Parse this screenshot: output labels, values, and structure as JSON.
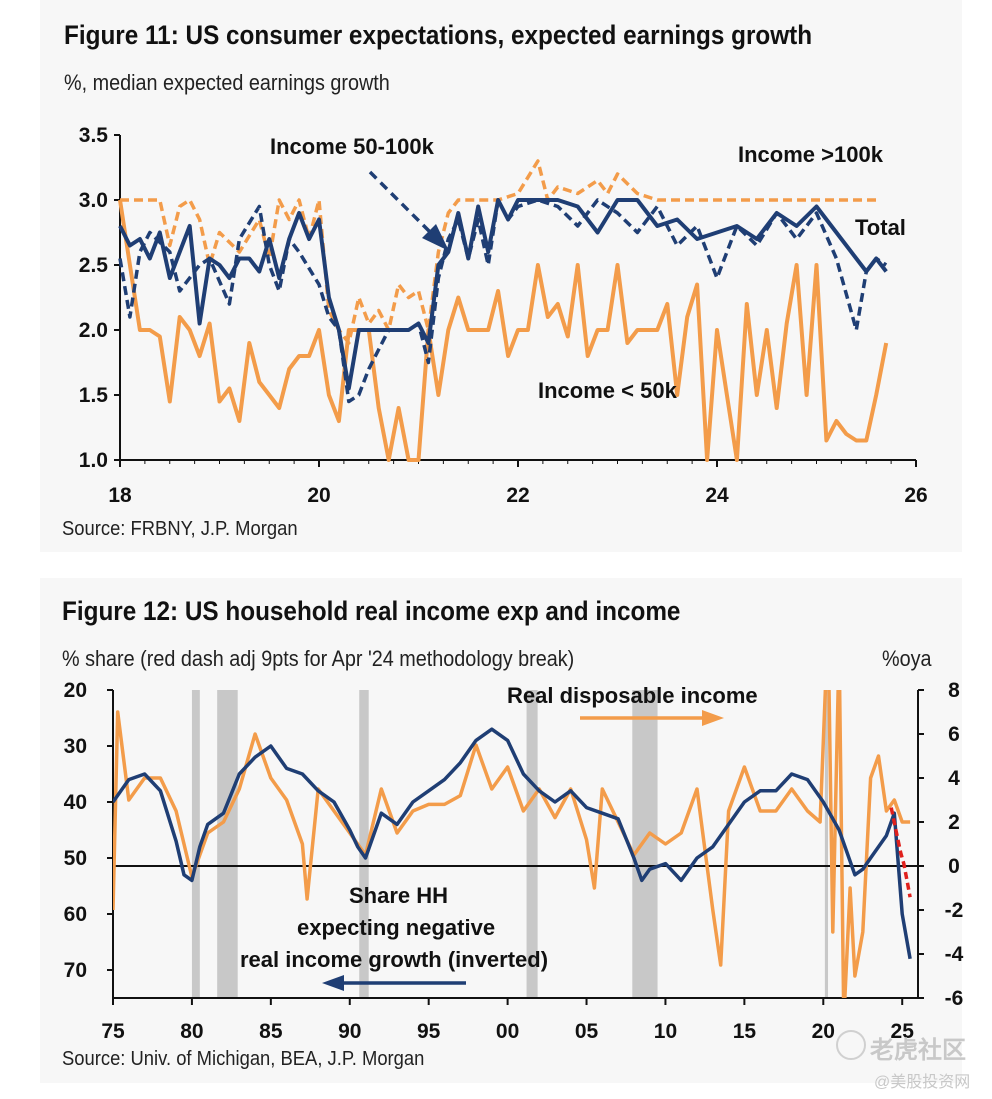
{
  "fig11": {
    "title": "Figure 11: US consumer expectations, expected earnings growth",
    "subtitle": "%, median expected earnings growth",
    "source": "Source: FRBNY, J.P. Morgan",
    "annotations": {
      "mid": "Income 50-100k",
      "high": "Income >100k",
      "total": "Total",
      "low": "Income < 50k"
    }
  },
  "fig12": {
    "title": "Figure 12: US household real income exp and income",
    "subtitle_left": "% share (red dash adj 9pts for Apr '24 methodology break)",
    "subtitle_right": "%oya",
    "source": "Source: Univ. of Michigan, BEA, J.P. Morgan",
    "annotations": {
      "rdi": "Real disposable income",
      "share1": "Share HH",
      "share2": "expecting negative",
      "share3": "real income growth (inverted)"
    }
  },
  "watermark": {
    "line1": "老虎社区",
    "line2": "@美股投资网"
  },
  "chart_data": [
    {
      "type": "line",
      "title": "Figure 11: US consumer expectations, expected earnings growth",
      "ylabel": "%, median expected earnings growth",
      "xlabel": "",
      "xlim": [
        2018,
        2026
      ],
      "ylim": [
        1.0,
        3.5
      ],
      "x_ticks": [
        18,
        20,
        22,
        24,
        26
      ],
      "y_ticks": [
        "3.5",
        "3.0",
        "2.5",
        "2.0",
        "1.5",
        "1.0"
      ],
      "grid": false,
      "series": [
        {
          "name": "Total",
          "color": "#1f3e74",
          "style": "solid",
          "x": [
            2018.0,
            2018.1,
            2018.2,
            2018.3,
            2018.4,
            2018.5,
            2018.6,
            2018.7,
            2018.8,
            2018.9,
            2019.0,
            2019.1,
            2019.2,
            2019.3,
            2019.4,
            2019.5,
            2019.6,
            2019.7,
            2019.8,
            2019.9,
            2020.0,
            2020.1,
            2020.2,
            2020.3,
            2020.4,
            2020.5,
            2020.6,
            2020.7,
            2020.8,
            2020.9,
            2021.0,
            2021.1,
            2021.2,
            2021.3,
            2021.4,
            2021.5,
            2021.6,
            2021.7,
            2021.8,
            2021.9,
            2022.0,
            2022.2,
            2022.4,
            2022.6,
            2022.8,
            2023.0,
            2023.2,
            2023.4,
            2023.6,
            2023.8,
            2024.0,
            2024.2,
            2024.4,
            2024.6,
            2024.8,
            2025.0,
            2025.2,
            2025.4,
            2025.5,
            2025.6,
            2025.7
          ],
          "values": [
            2.8,
            2.65,
            2.7,
            2.55,
            2.75,
            2.4,
            2.6,
            2.8,
            2.05,
            2.55,
            2.5,
            2.4,
            2.55,
            2.55,
            2.45,
            2.7,
            2.4,
            2.7,
            2.9,
            2.7,
            2.85,
            2.25,
            2.0,
            1.55,
            2.0,
            2.0,
            2.0,
            2.0,
            2.0,
            2.0,
            2.05,
            1.9,
            2.5,
            2.6,
            2.9,
            2.55,
            2.95,
            2.6,
            3.0,
            2.85,
            3.0,
            3.0,
            3.0,
            2.95,
            2.75,
            3.0,
            3.0,
            2.8,
            2.85,
            2.7,
            2.75,
            2.8,
            2.7,
            2.9,
            2.8,
            2.95,
            2.75,
            2.55,
            2.45,
            2.55,
            2.45
          ]
        },
        {
          "name": "Income 50-100k",
          "color": "#1f3e74",
          "style": "dashed",
          "x": [
            2018.0,
            2018.1,
            2018.2,
            2018.3,
            2018.5,
            2018.6,
            2018.8,
            2018.9,
            2019.1,
            2019.2,
            2019.4,
            2019.5,
            2019.6,
            2019.7,
            2019.8,
            2020.0,
            2020.1,
            2020.2,
            2020.3,
            2020.4,
            2020.5,
            2020.6,
            2020.7,
            2020.8,
            2020.9,
            2021.0,
            2021.1,
            2021.2,
            2021.3,
            2021.4,
            2021.5,
            2021.6,
            2021.7,
            2021.8,
            2021.9,
            2022.0,
            2022.2,
            2022.4,
            2022.6,
            2022.8,
            2023.0,
            2023.2,
            2023.4,
            2023.6,
            2023.8,
            2024.0,
            2024.2,
            2024.4,
            2024.6,
            2024.8,
            2025.0,
            2025.2,
            2025.4,
            2025.5,
            2025.6,
            2025.7
          ],
          "values": [
            2.55,
            2.1,
            2.6,
            2.75,
            2.6,
            2.3,
            2.5,
            2.55,
            2.2,
            2.7,
            2.95,
            2.5,
            2.3,
            2.7,
            2.6,
            2.35,
            2.1,
            2.0,
            1.45,
            1.5,
            1.7,
            1.85,
            2.0,
            2.0,
            2.0,
            2.05,
            1.75,
            2.4,
            2.7,
            2.85,
            2.55,
            2.85,
            2.5,
            3.0,
            2.85,
            2.95,
            3.0,
            2.95,
            2.8,
            3.0,
            2.9,
            2.75,
            2.95,
            2.65,
            2.8,
            2.4,
            2.8,
            2.65,
            2.9,
            2.7,
            2.9,
            2.55,
            2.0,
            2.45,
            2.55,
            2.5
          ]
        },
        {
          "name": "Income >100k",
          "color": "#f39c4a",
          "style": "dashed",
          "x": [
            2018.0,
            2018.1,
            2018.2,
            2018.4,
            2018.5,
            2018.6,
            2018.7,
            2018.8,
            2018.9,
            2019.0,
            2019.2,
            2019.4,
            2019.5,
            2019.6,
            2019.7,
            2019.8,
            2019.9,
            2020.0,
            2020.1,
            2020.2,
            2020.3,
            2020.4,
            2020.5,
            2020.6,
            2020.7,
            2020.8,
            2020.9,
            2021.0,
            2021.1,
            2021.2,
            2021.3,
            2021.4,
            2021.6,
            2021.8,
            2022.0,
            2022.2,
            2022.3,
            2022.4,
            2022.6,
            2022.8,
            2022.9,
            2023.0,
            2023.2,
            2023.4,
            2023.6,
            2023.8,
            2024.0,
            2024.4,
            2024.8,
            2025.2,
            2025.6
          ],
          "values": [
            3.0,
            3.0,
            3.0,
            3.0,
            2.65,
            2.95,
            3.0,
            2.85,
            2.5,
            2.75,
            2.6,
            2.85,
            2.55,
            3.0,
            2.85,
            3.0,
            2.7,
            3.0,
            2.15,
            2.0,
            1.9,
            2.25,
            2.05,
            2.15,
            2.0,
            2.35,
            2.25,
            2.3,
            2.0,
            2.6,
            2.9,
            3.0,
            3.0,
            3.0,
            3.05,
            3.3,
            3.0,
            3.1,
            3.05,
            3.15,
            3.05,
            3.2,
            3.05,
            3.0,
            3.0,
            3.0,
            3.0,
            3.0,
            3.0,
            3.0,
            3.0
          ]
        },
        {
          "name": "Income < 50k",
          "color": "#f39c4a",
          "style": "solid",
          "x": [
            2018.0,
            2018.1,
            2018.2,
            2018.3,
            2018.4,
            2018.5,
            2018.6,
            2018.7,
            2018.8,
            2018.9,
            2019.0,
            2019.1,
            2019.2,
            2019.3,
            2019.4,
            2019.5,
            2019.6,
            2019.7,
            2019.8,
            2019.9,
            2020.0,
            2020.1,
            2020.2,
            2020.3,
            2020.4,
            2020.5,
            2020.6,
            2020.7,
            2020.8,
            2020.9,
            2021.0,
            2021.1,
            2021.2,
            2021.3,
            2021.4,
            2021.5,
            2021.6,
            2021.7,
            2021.8,
            2021.9,
            2022.0,
            2022.1,
            2022.2,
            2022.3,
            2022.4,
            2022.5,
            2022.6,
            2022.7,
            2022.8,
            2022.9,
            2023.0,
            2023.1,
            2023.2,
            2023.3,
            2023.4,
            2023.5,
            2023.6,
            2023.7,
            2023.8,
            2023.9,
            2024.0,
            2024.1,
            2024.2,
            2024.3,
            2024.4,
            2024.5,
            2024.6,
            2024.7,
            2024.8,
            2024.9,
            2025.0,
            2025.1,
            2025.2,
            2025.3,
            2025.4,
            2025.5,
            2025.6,
            2025.7
          ],
          "values": [
            3.0,
            2.5,
            2.0,
            2.0,
            1.95,
            1.45,
            2.1,
            2.0,
            1.8,
            2.05,
            1.45,
            1.55,
            1.3,
            1.9,
            1.6,
            1.5,
            1.4,
            1.7,
            1.8,
            1.8,
            2.0,
            1.5,
            1.3,
            2.0,
            2.0,
            2.0,
            1.4,
            1.0,
            1.4,
            1.0,
            1.0,
            2.0,
            1.5,
            2.0,
            2.25,
            2.0,
            2.0,
            2.0,
            2.3,
            1.8,
            2.0,
            2.0,
            2.5,
            2.1,
            2.2,
            1.95,
            2.5,
            1.8,
            2.0,
            2.0,
            2.5,
            1.9,
            2.0,
            2.0,
            2.0,
            2.2,
            1.5,
            2.1,
            2.35,
            1.0,
            2.0,
            1.5,
            1.0,
            2.2,
            1.5,
            2.0,
            1.4,
            2.05,
            2.5,
            1.5,
            2.5,
            1.15,
            1.3,
            1.2,
            1.15,
            1.15,
            1.5,
            1.9
          ]
        }
      ]
    },
    {
      "type": "line",
      "title": "Figure 12: US household real income exp and income",
      "ylabel_left": "% share (red dash adj 9pts for Apr '24 methodology break)",
      "ylabel_right": "%oya",
      "xlabel": "",
      "xlim": [
        1975,
        2026
      ],
      "ylim_left_inverted": [
        20,
        75
      ],
      "ylim_right": [
        -6,
        8
      ],
      "x_ticks": [
        "75",
        "80",
        "85",
        "90",
        "95",
        "00",
        "05",
        "10",
        "15",
        "20",
        "25"
      ],
      "y_ticks_left": [
        "20",
        "30",
        "40",
        "50",
        "60",
        "70"
      ],
      "y_ticks_right": [
        "8",
        "6",
        "4",
        "2",
        "0",
        "-2",
        "-4",
        "-6"
      ],
      "recessions": [
        [
          1980.0,
          1980.5
        ],
        [
          1981.6,
          1982.9
        ],
        [
          1990.6,
          1991.2
        ],
        [
          2001.2,
          2001.9
        ],
        [
          2007.9,
          2009.5
        ],
        [
          2020.1,
          2020.3
        ]
      ],
      "zero_line_right": 0,
      "series": [
        {
          "name": "Share HH expecting negative real income growth (inverted)",
          "axis": "left",
          "color": "#1f3e74",
          "x": [
            1975.0,
            1976.0,
            1977.0,
            1978.0,
            1979.0,
            1979.5,
            1980.0,
            1980.5,
            1981.0,
            1982.0,
            1983.0,
            1984.0,
            1985.0,
            1986.0,
            1987.0,
            1988.0,
            1989.0,
            1990.0,
            1990.5,
            1991.0,
            1992.0,
            1993.0,
            1994.0,
            1995.0,
            1996.0,
            1997.0,
            1998.0,
            1999.0,
            2000.0,
            2001.0,
            2002.0,
            2003.0,
            2004.0,
            2005.0,
            2006.0,
            2007.0,
            2008.0,
            2008.5,
            2009.0,
            2010.0,
            2011.0,
            2012.0,
            2013.0,
            2014.0,
            2015.0,
            2016.0,
            2017.0,
            2018.0,
            2019.0,
            2020.0,
            2021.0,
            2022.0,
            2022.5,
            2023.0,
            2024.0,
            2024.5,
            2025.0,
            2025.5
          ],
          "values": [
            40,
            36,
            35,
            38,
            47,
            53,
            54,
            48,
            44,
            42,
            35,
            32,
            30,
            34,
            35,
            38,
            40,
            45,
            48,
            50,
            42,
            44,
            40,
            38,
            36,
            33,
            29,
            27,
            29,
            35,
            38,
            40,
            38,
            41,
            42,
            43,
            50,
            54,
            52,
            51,
            54,
            50,
            48,
            44,
            40,
            38,
            38,
            35,
            36,
            40,
            45,
            53,
            52,
            50,
            46,
            42,
            60,
            68
          ]
        },
        {
          "name": "Real disposable income",
          "axis": "right",
          "color": "#f39c4a",
          "x": [
            1975.0,
            1975.3,
            1976.0,
            1977.0,
            1978.0,
            1979.0,
            1980.0,
            1980.5,
            1981.0,
            1982.0,
            1983.0,
            1984.0,
            1985.0,
            1986.0,
            1987.0,
            1987.3,
            1988.0,
            1989.0,
            1990.0,
            1991.0,
            1992.0,
            1993.0,
            1994.0,
            1995.0,
            1996.0,
            1997.0,
            1998.0,
            1999.0,
            2000.0,
            2001.0,
            2002.0,
            2003.0,
            2004.0,
            2005.0,
            2005.5,
            2006.0,
            2007.0,
            2008.0,
            2009.0,
            2010.0,
            2011.0,
            2012.0,
            2013.0,
            2013.5,
            2014.0,
            2015.0,
            2016.0,
            2017.0,
            2018.0,
            2019.0,
            2019.8,
            2020.3,
            2020.6,
            2021.0,
            2021.3,
            2021.7,
            2022.0,
            2022.5,
            2023.0,
            2023.5,
            2024.0,
            2024.5,
            2025.0,
            2025.5
          ],
          "values": [
            -2,
            7,
            3,
            4,
            4,
            2.5,
            -0.5,
            0.5,
            1.5,
            2,
            3.5,
            6,
            4,
            3,
            1,
            -1.5,
            3.5,
            2.5,
            1.5,
            0.5,
            3.5,
            1.5,
            2.5,
            2.8,
            2.8,
            3.2,
            5.5,
            3.5,
            4.5,
            2.5,
            3.5,
            2.2,
            3.5,
            1.2,
            -1,
            3.5,
            2.0,
            0.5,
            1.5,
            1.0,
            1.5,
            3.5,
            -2,
            -4.5,
            2.5,
            4.5,
            2.5,
            2.5,
            3.5,
            2.5,
            2.0,
            11,
            -3,
            10,
            -7,
            -1,
            -5,
            -3,
            4.0,
            5.0,
            2.5,
            3.0,
            2.0,
            2.0
          ]
        },
        {
          "name": "Adjusted share (red dash)",
          "axis": "left",
          "color": "#e0201c",
          "x": [
            2024.3,
            2024.6,
            2024.9,
            2025.1,
            2025.3,
            2025.5
          ],
          "values": [
            41,
            45,
            49,
            51,
            54,
            57
          ]
        }
      ]
    }
  ]
}
